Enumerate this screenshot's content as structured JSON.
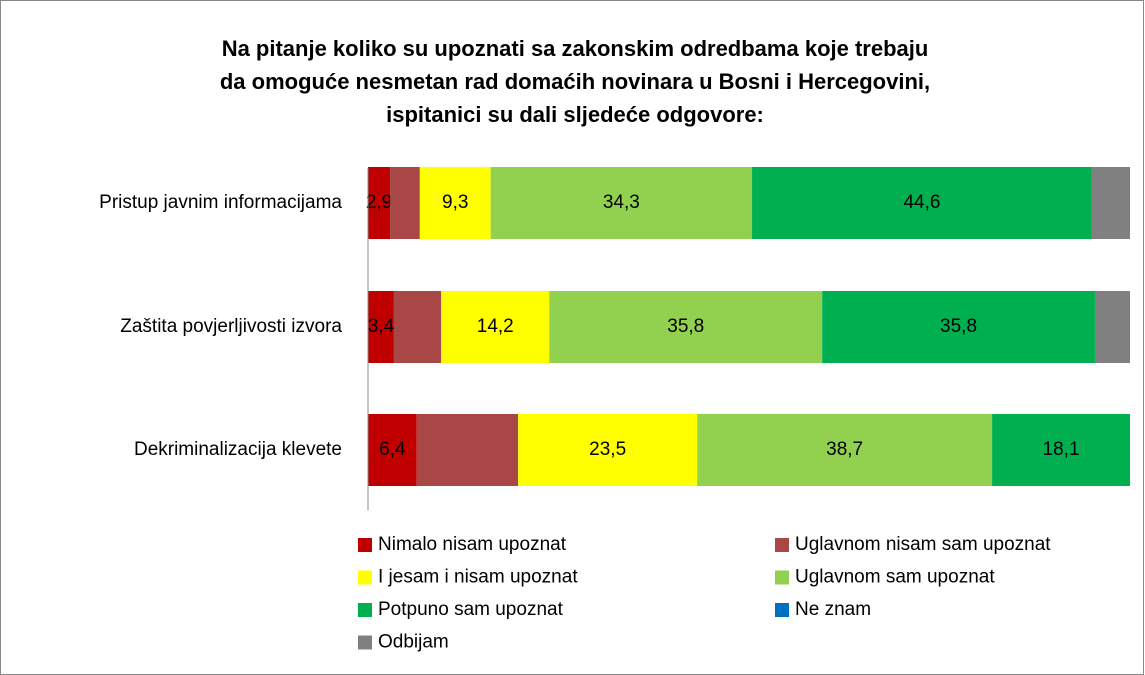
{
  "chart_data": {
    "type": "bar",
    "orientation": "horizontal",
    "stacked": true,
    "title": [
      "Na pitanje koliko su upoznati sa zakonskim odredbama koje trebaju",
      "da omoguće nesmetan rad domaćih novinara u Bosni i Hercegovini,",
      "ispitanici su dali sljedeće odgovore:"
    ],
    "categories": [
      "Pristup javnim informacijama",
      "Zaštita povjerljivosti izvora",
      "Dekriminalizacija klevete"
    ],
    "xlim": [
      0,
      100
    ],
    "series": [
      {
        "name": "Nimalo nisam upoznat",
        "color": "#c00000",
        "values": [
          2.9,
          3.4,
          6.4
        ],
        "value_labels": [
          "2,9",
          "3,4",
          "6,4"
        ]
      },
      {
        "name": "Uglavnom nisam sam upoznat",
        "color": "#a94646",
        "values": [
          3.9,
          6.2,
          13.3
        ],
        "value_labels": [
          null,
          null,
          null
        ]
      },
      {
        "name": "I jesam i nisam upoznat",
        "color": "#ffff00",
        "values": [
          9.3,
          14.2,
          23.5
        ],
        "value_labels": [
          "9,3",
          "14,2",
          "23,5"
        ]
      },
      {
        "name": "Uglavnom sam upoznat",
        "color": "#92d050",
        "values": [
          34.3,
          35.8,
          38.7
        ],
        "value_labels": [
          "34,3",
          "35,8",
          "38,7"
        ]
      },
      {
        "name": "Potpuno sam upoznat",
        "color": "#00b050",
        "values": [
          44.6,
          35.8,
          18.1
        ],
        "value_labels": [
          "44,6",
          "35,8",
          "18,1"
        ]
      },
      {
        "name": "Ne znam",
        "color": "#0070c0",
        "values": [
          0,
          0,
          0
        ],
        "value_labels": [
          null,
          null,
          null
        ]
      },
      {
        "name": "Odbijam",
        "color": "#808080",
        "values": [
          5.0,
          4.6,
          0
        ],
        "value_labels": [
          null,
          null,
          null
        ]
      }
    ]
  }
}
